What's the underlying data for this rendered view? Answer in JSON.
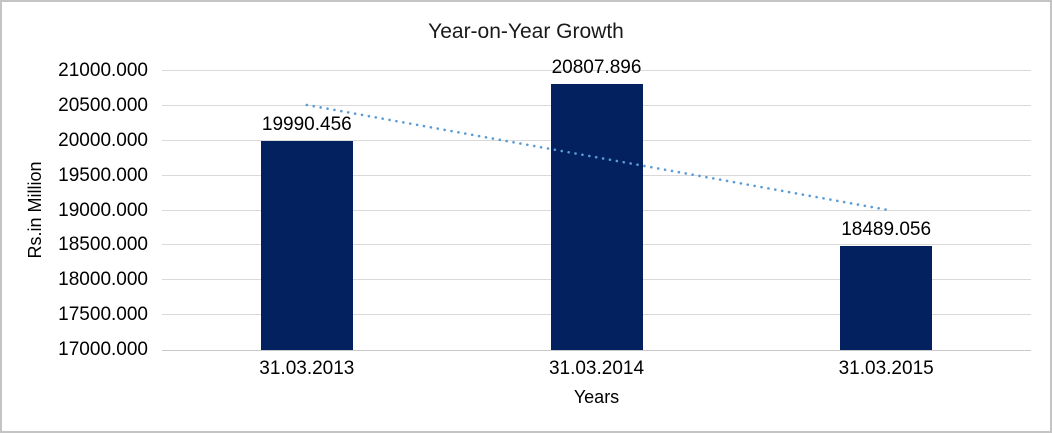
{
  "window": {
    "background": "#ffffff",
    "border_color": "#c4c4c4"
  },
  "chart_data": {
    "type": "bar",
    "title": "Year-on-Year Growth",
    "xlabel": "Years",
    "ylabel": "Rs.in Million",
    "categories": [
      "31.03.2013",
      "31.03.2014",
      "31.03.2015"
    ],
    "values": [
      19990.456,
      20807.896,
      18489.056
    ],
    "data_labels": [
      "19990.456",
      "20807.896",
      "18489.056"
    ],
    "ylim": [
      17000,
      21000
    ],
    "ytick_step": 500,
    "ytick_labels": [
      "21000.000",
      "20500.000",
      "20000.000",
      "19500.000",
      "19000.000",
      "18500.000",
      "18000.000",
      "17500.000",
      "17000.000"
    ],
    "grid": true,
    "legend": "none",
    "colors": {
      "bar": "#02215E",
      "trendline": "#5B9BD5",
      "gridline": "#D9D9D9",
      "axis_line": "#C9C9C9",
      "text": "#000000"
    },
    "trendline": {
      "type": "linear",
      "style": "dotted",
      "values": [
        20513.2,
        19762.5,
        19011.8
      ]
    }
  }
}
